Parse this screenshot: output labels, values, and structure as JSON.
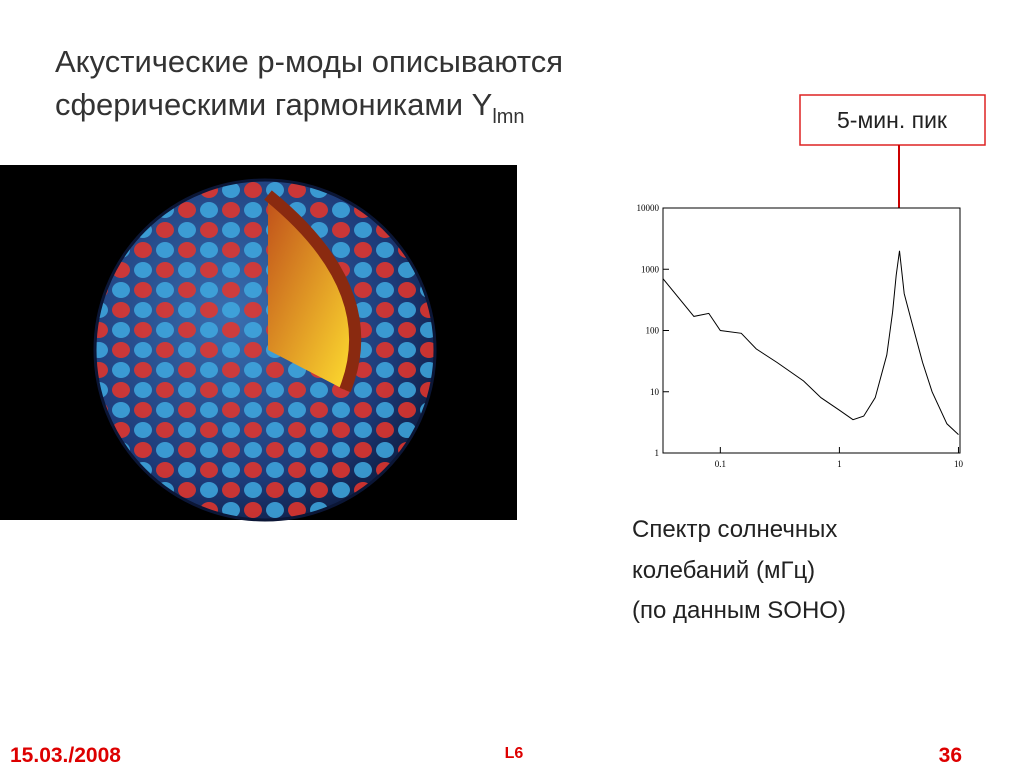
{
  "header": {
    "title_lines": [
      "Акустические p-моды описываются",
      "сферическими гармониками Y"
    ],
    "title_subscript": "lmn"
  },
  "callout": "5-мин. пик",
  "caption_lines": [
    "Спектр солнечных",
    "колебаний (мГц)",
    "(по данным SOHO)"
  ],
  "footer": {
    "date": "15.03./2008",
    "lecture": "L6",
    "page": "36"
  },
  "chart_data": {
    "type": "line",
    "log_x": true,
    "log_y": true,
    "color": "#000000",
    "x": [
      0.033,
      0.06,
      0.08,
      0.1,
      0.15,
      0.2,
      0.3,
      0.5,
      0.7,
      1.0,
      1.3,
      1.6,
      2.0,
      2.5,
      2.8,
      3.0,
      3.2,
      3.5,
      4,
      5,
      6,
      8,
      10
    ],
    "values": [
      700,
      170,
      190,
      100,
      90,
      50,
      30,
      15,
      8,
      5,
      3.5,
      4,
      8,
      40,
      200,
      800,
      2000,
      400,
      150,
      30,
      10,
      3,
      2
    ],
    "xlim": [
      0.033,
      10.3
    ],
    "ylim": [
      1,
      10000
    ],
    "xticks": [
      0.1,
      1,
      10
    ],
    "yticks": [
      1,
      10,
      100,
      1000,
      10000
    ]
  }
}
